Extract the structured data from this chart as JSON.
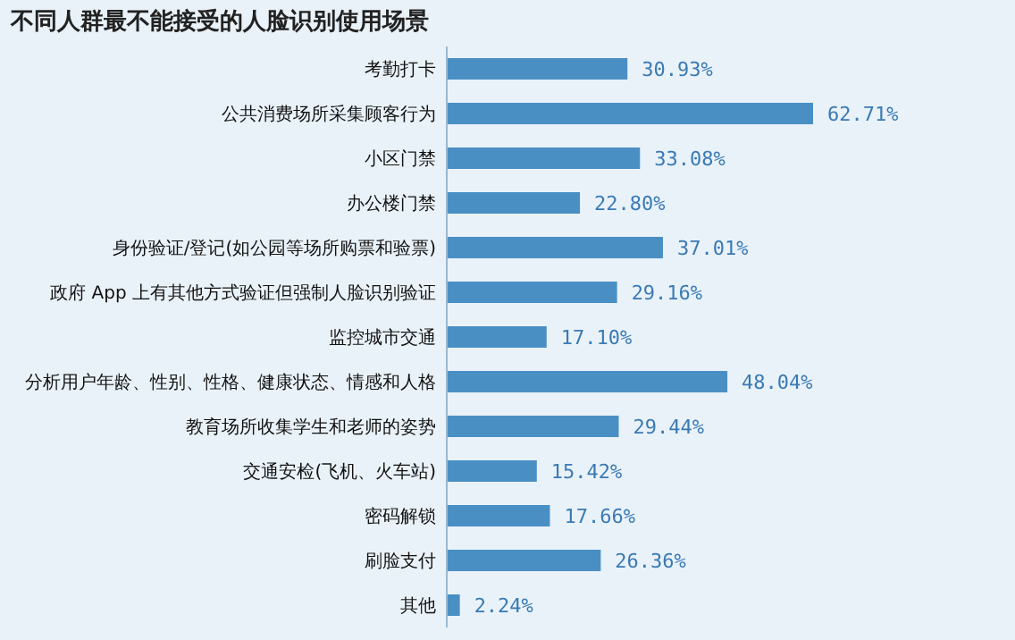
{
  "chart_data": {
    "type": "bar",
    "orientation": "horizontal",
    "title": "不同人群最不能接受的人脸识别使用场景",
    "categories": [
      "考勤打卡",
      "公共消费场所采集顾客行为",
      "小区门禁",
      "办公楼门禁",
      "身份验证/登记(如公园等场所购票和验票)",
      "政府 App 上有其他方式验证但强制人脸识别验证",
      "监控城市交通",
      "分析用户年龄、性别、性格、健康状态、情感和人格",
      "教育场所收集学生和老师的姿势",
      "交通安检(飞机、火车站)",
      "密码解锁",
      "刷脸支付",
      "其他"
    ],
    "values": [
      30.93,
      62.71,
      33.08,
      22.8,
      37.01,
      29.16,
      17.1,
      48.04,
      29.44,
      15.42,
      17.66,
      26.36,
      2.24
    ],
    "value_labels": [
      "30.93%",
      "62.71%",
      "33.08%",
      "22.80%",
      "37.01%",
      "29.16%",
      "17.10%",
      "48.04%",
      "29.44%",
      "15.42%",
      "17.66%",
      "26.36%",
      "2.24%"
    ],
    "color": "#4a8fc4"
  }
}
